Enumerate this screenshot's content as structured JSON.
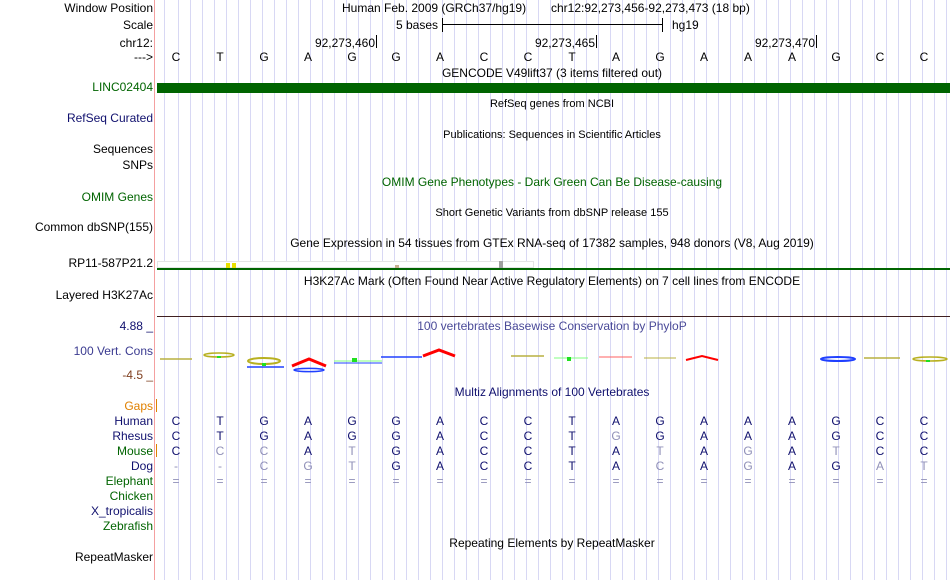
{
  "header": {
    "window_position_label": "Window Position",
    "scale_label": "Scale",
    "chrom_label": "chr12:",
    "strand_label": "--->",
    "assembly": "Human Feb. 2009 (GRCh37/hg19)",
    "position": "chr12:92,273,456-92,273,473 (18 bp)",
    "scale_text": "5 bases",
    "scale_db": "hg19",
    "ticks": [
      "92,273,460",
      "92,273,465",
      "92,273,470"
    ],
    "bases": [
      "C",
      "T",
      "G",
      "A",
      "G",
      "G",
      "A",
      "C",
      "C",
      "T",
      "A",
      "G",
      "A",
      "A",
      "A",
      "G",
      "C",
      "C"
    ]
  },
  "tracks": {
    "gencode_title": "GENCODE V49lift37 (3 items filtered out)",
    "gencode_item": "LINC02404",
    "refseq_title": "RefSeq genes from NCBI",
    "refseq_label": "RefSeq Curated",
    "pubs_title": "Publications: Sequences in Scientific Articles",
    "pubs_label": "Sequences",
    "snps_label": "SNPs",
    "omim_title": "OMIM Gene Phenotypes - Dark Green Can Be Disease-causing",
    "omim_label": "OMIM Genes",
    "dbsnp_title": "Short Genetic Variants from dbSNP release 155",
    "dbsnp_label": "Common dbSNP(155)",
    "gtex_title": "Gene Expression in 54 tissues from GTEx RNA-seq of 17382 samples, 948 donors (V8, Aug 2019)",
    "gtex_label": "RP11-587P21.2",
    "h3k27ac_title": "H3K27Ac Mark (Often Found Near Active Regulatory Elements) on 7 cell lines from ENCODE",
    "h3k27ac_label": "Layered H3K27Ac",
    "phylop_title": "100 vertebrates Basewise Conservation by PhyloP",
    "phylop_label": "100 Vert. Cons",
    "phylop_max": "4.88 _",
    "phylop_min": "-4.5 _",
    "multiz_title": "Multiz Alignments of 100 Vertebrates",
    "rmsk_title": "Repeating Elements by RepeatMasker",
    "rmsk_label": "RepeatMasker"
  },
  "alignment": {
    "gaps_label": "Gaps",
    "species": [
      {
        "name": "Human",
        "seq": "CTGAGGACCTAGAAAGCC",
        "mismatch": "000000000000000000",
        "color": "#10106e"
      },
      {
        "name": "Rhesus",
        "seq": "CTGAGGACCTGGAAAGCC",
        "mismatch": "000000000010000000",
        "color": "#10106e"
      },
      {
        "name": "Mouse",
        "seq": "CCCATGACCTATAGATCC",
        "mismatch": "011010000001010100",
        "color": "#006400"
      },
      {
        "name": "Dog",
        "seq": "--CGTGACCTACAGAGAT",
        "mismatch": "111110000001010011",
        "color": "#10106e"
      },
      {
        "name": "Elephant",
        "seq": "==================",
        "mismatch": "111111111111111111",
        "color": "#006400"
      },
      {
        "name": "Chicken",
        "seq": "",
        "mismatch": "",
        "color": "#006400"
      },
      {
        "name": "X_tropicalis",
        "seq": "",
        "mismatch": "",
        "color": "#10106e"
      },
      {
        "name": "Zebrafish",
        "seq": "",
        "mismatch": "",
        "color": "#006400"
      }
    ]
  },
  "colors": {
    "gene": "#006400",
    "label_navy": "#10106e",
    "gaps": "#e08000",
    "separator": "#f4a0a0"
  }
}
